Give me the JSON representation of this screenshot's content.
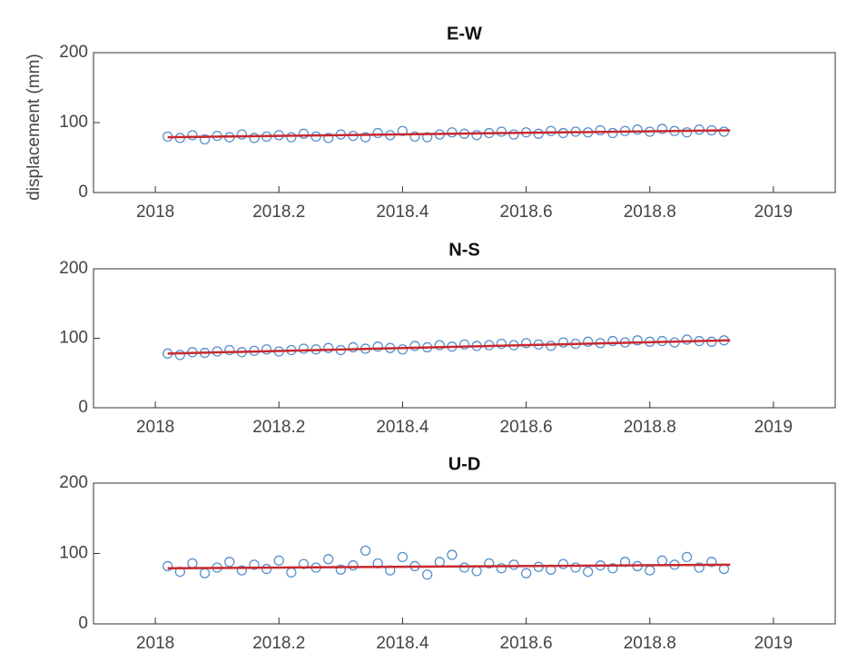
{
  "chart_data": [
    {
      "type": "scatter",
      "title": "E-W",
      "ylabel": "displacement (mm)",
      "x": [
        2018.02,
        2018.04,
        2018.06,
        2018.08,
        2018.1,
        2018.12,
        2018.14,
        2018.16,
        2018.18,
        2018.2,
        2018.22,
        2018.24,
        2018.26,
        2018.28,
        2018.3,
        2018.32,
        2018.34,
        2018.36,
        2018.38,
        2018.4,
        2018.42,
        2018.44,
        2018.46,
        2018.48,
        2018.5,
        2018.52,
        2018.54,
        2018.56,
        2018.58,
        2018.6,
        2018.62,
        2018.64,
        2018.66,
        2018.68,
        2018.7,
        2018.72,
        2018.74,
        2018.76,
        2018.78,
        2018.8,
        2018.82,
        2018.84,
        2018.86,
        2018.88,
        2018.9,
        2018.92
      ],
      "values": [
        80,
        78,
        82,
        76,
        81,
        79,
        83,
        78,
        80,
        82,
        79,
        84,
        80,
        78,
        83,
        81,
        79,
        85,
        82,
        88,
        80,
        79,
        83,
        86,
        84,
        82,
        85,
        87,
        83,
        86,
        84,
        88,
        85,
        87,
        86,
        89,
        85,
        88,
        90,
        87,
        91,
        88,
        86,
        90,
        89,
        87
      ],
      "color": "#3a7cc4",
      "trend_x": [
        2018.02,
        2018.93
      ],
      "trend_values": [
        79,
        89
      ],
      "trend_color": "#c8282d",
      "xlim": [
        2017.9,
        2019.1
      ],
      "xticks": [
        2018,
        2018.2,
        2018.4,
        2018.6,
        2018.8,
        2019
      ],
      "ylim": [
        0,
        200
      ],
      "yticks": [
        0,
        100,
        200
      ]
    },
    {
      "type": "scatter",
      "title": "N-S",
      "x": [
        2018.02,
        2018.04,
        2018.06,
        2018.08,
        2018.1,
        2018.12,
        2018.14,
        2018.16,
        2018.18,
        2018.2,
        2018.22,
        2018.24,
        2018.26,
        2018.28,
        2018.3,
        2018.32,
        2018.34,
        2018.36,
        2018.38,
        2018.4,
        2018.42,
        2018.44,
        2018.46,
        2018.48,
        2018.5,
        2018.52,
        2018.54,
        2018.56,
        2018.58,
        2018.6,
        2018.62,
        2018.64,
        2018.66,
        2018.68,
        2018.7,
        2018.72,
        2018.74,
        2018.76,
        2018.78,
        2018.8,
        2018.82,
        2018.84,
        2018.86,
        2018.88,
        2018.9,
        2018.92
      ],
      "values": [
        78,
        76,
        80,
        79,
        81,
        83,
        80,
        82,
        84,
        81,
        83,
        85,
        84,
        86,
        83,
        87,
        85,
        88,
        86,
        84,
        89,
        87,
        90,
        88,
        91,
        89,
        90,
        92,
        90,
        93,
        91,
        89,
        94,
        92,
        95,
        93,
        96,
        94,
        97,
        95,
        96,
        94,
        98,
        96,
        95,
        97
      ],
      "color": "#3a7cc4",
      "trend_x": [
        2018.02,
        2018.93
      ],
      "trend_values": [
        78,
        97
      ],
      "trend_color": "#c8282d",
      "xlim": [
        2017.9,
        2019.1
      ],
      "xticks": [
        2018,
        2018.2,
        2018.4,
        2018.6,
        2018.8,
        2019
      ],
      "ylim": [
        0,
        200
      ],
      "yticks": [
        0,
        100,
        200
      ]
    },
    {
      "type": "scatter",
      "title": "U-D",
      "x": [
        2018.02,
        2018.04,
        2018.06,
        2018.08,
        2018.1,
        2018.12,
        2018.14,
        2018.16,
        2018.18,
        2018.2,
        2018.22,
        2018.24,
        2018.26,
        2018.28,
        2018.3,
        2018.32,
        2018.34,
        2018.36,
        2018.38,
        2018.4,
        2018.42,
        2018.44,
        2018.46,
        2018.48,
        2018.5,
        2018.52,
        2018.54,
        2018.56,
        2018.58,
        2018.6,
        2018.62,
        2018.64,
        2018.66,
        2018.68,
        2018.7,
        2018.72,
        2018.74,
        2018.76,
        2018.78,
        2018.8,
        2018.82,
        2018.84,
        2018.86,
        2018.88,
        2018.9,
        2018.92
      ],
      "values": [
        82,
        74,
        86,
        72,
        80,
        88,
        76,
        84,
        78,
        90,
        73,
        85,
        80,
        92,
        77,
        83,
        104,
        86,
        76,
        95,
        82,
        70,
        88,
        98,
        80,
        75,
        86,
        79,
        84,
        72,
        81,
        77,
        85,
        80,
        74,
        83,
        79,
        88,
        82,
        76,
        90,
        84,
        95,
        80,
        88,
        78
      ],
      "color": "#3a7cc4",
      "trend_x": [
        2018.02,
        2018.93
      ],
      "trend_values": [
        79,
        84
      ],
      "trend_color": "#c8282d",
      "xlim": [
        2017.9,
        2019.1
      ],
      "xticks": [
        2018,
        2018.2,
        2018.4,
        2018.6,
        2018.8,
        2019
      ],
      "ylim": [
        0,
        200
      ],
      "yticks": [
        0,
        100,
        200
      ]
    }
  ]
}
